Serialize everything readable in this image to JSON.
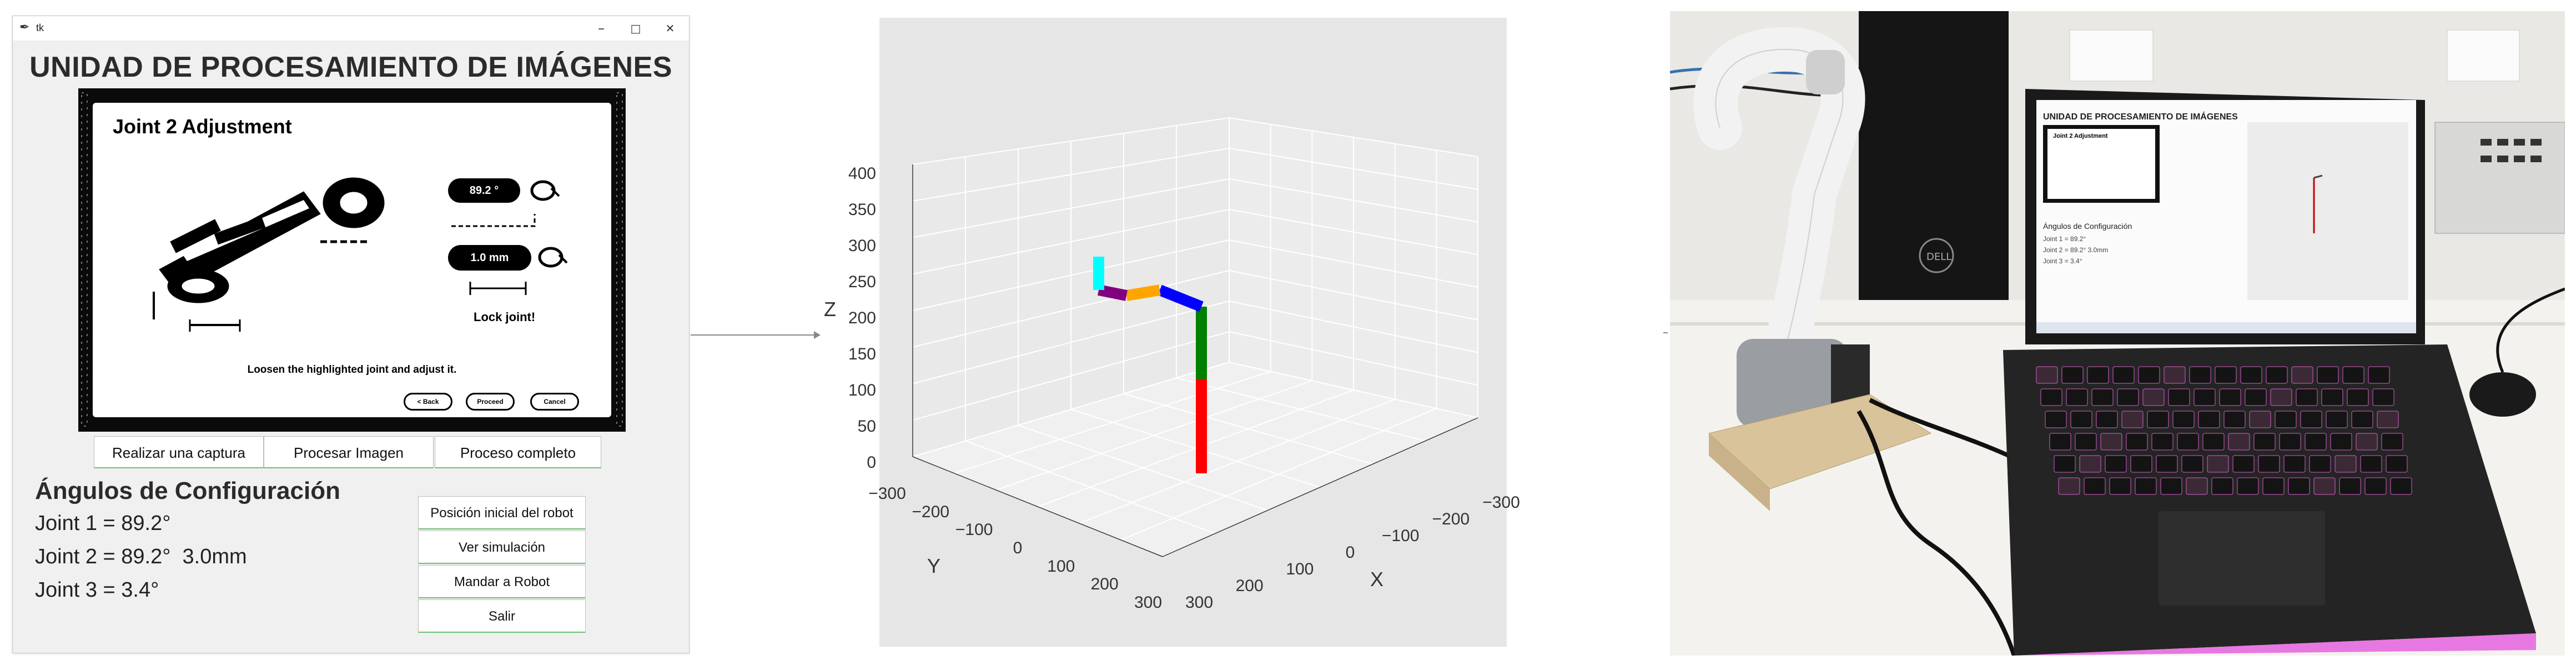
{
  "window": {
    "title": "tk",
    "heading": "UNIDAD DE PROCESAMIENTO DE IMÁGENES",
    "controls": [
      "–",
      "□",
      "✕"
    ]
  },
  "capture": {
    "title": "Joint 2 Adjustment",
    "angle_value": "89.2 °",
    "distance_value": "1.0 mm",
    "lock_text": "Lock joint!",
    "instruction": "Loosen the highlighted joint and adjust it.",
    "buttons": [
      "< Back",
      "Proceed",
      "Cancel"
    ]
  },
  "actions": [
    "Realizar una captura",
    "Procesar Imagen",
    "Proceso completo"
  ],
  "angles": {
    "title": "Ángulos de Configuración",
    "lines": [
      "Joint 1 = 89.2°",
      "Joint 2 = 89.2°  3.0mm",
      "Joint 3 = 3.4°"
    ]
  },
  "side_buttons": [
    "Posición inicial del robot",
    "Ver simulación",
    "Mandar a Robot",
    "Salir"
  ],
  "plot3d": {
    "zlabel": "Z",
    "xlabel": "X",
    "ylabel": "Y",
    "z_ticks": [
      "400",
      "350",
      "300",
      "250",
      "200",
      "150",
      "100",
      "50",
      "0"
    ],
    "y_ticks": [
      "−300",
      "−200",
      "−100",
      "0",
      "100",
      "200",
      "300"
    ],
    "x_ticks": [
      "−300",
      "−200",
      "−100",
      "0",
      "100",
      "200",
      "300"
    ],
    "segment_colors": [
      "#ff0000",
      "#008000",
      "#0000ff",
      "#ffa500",
      "#800080",
      "#00ffff"
    ]
  },
  "photo": {
    "screen_heading": "UNIDAD DE PROCESAMIENTO DE IMÁGENES",
    "screen_subtitle": "Joint 2 Adjustment",
    "screen_angles_title": "Ángulos de Configuración",
    "screen_lines": [
      "Joint 1 = 89.2°",
      "Joint 2 = 89.2°  3.0mm",
      "Joint 3 = 3.4°"
    ],
    "tower_brand": "DELL"
  },
  "colors": {
    "accent_green": "#6fbf72",
    "plot_bg": "#e6e6e6"
  }
}
